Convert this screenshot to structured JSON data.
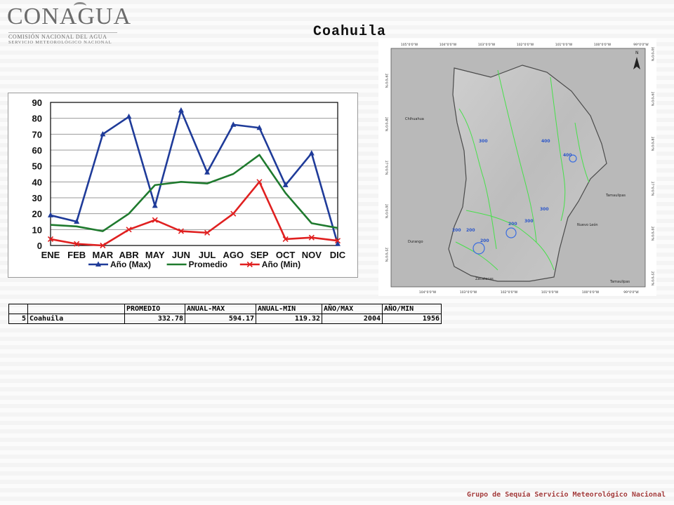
{
  "logo": {
    "title": "CONAGUA",
    "line1": "COMISIÓN NACIONAL DEL AGUA",
    "line2": "SERVICIO METEOROLÓGICO NACIONAL"
  },
  "page_title": "Coahuila",
  "chart_data": {
    "type": "line",
    "categories": [
      "ENE",
      "FEB",
      "MAR",
      "ABR",
      "MAY",
      "JUN",
      "JUL",
      "AGO",
      "SEP",
      "OCT",
      "NOV",
      "DIC"
    ],
    "series": [
      {
        "name": "Año (Max)",
        "color": "#1f3b99",
        "marker": "triangle",
        "values": [
          19,
          15,
          70,
          81,
          25,
          85,
          46,
          76,
          74,
          38,
          58,
          1
        ]
      },
      {
        "name": "Promedio",
        "color": "#1f7a2e",
        "marker": "none",
        "values": [
          13,
          12,
          9,
          20,
          38,
          40,
          39,
          45,
          57,
          33,
          14,
          11
        ]
      },
      {
        "name": "Año (Min)",
        "color": "#e02020",
        "marker": "x",
        "values": [
          4,
          1,
          0,
          10,
          16,
          9,
          8,
          20,
          40,
          4,
          5,
          3
        ]
      }
    ],
    "yticks": [
      0,
      10,
      20,
      30,
      40,
      50,
      60,
      70,
      80,
      90
    ],
    "ylim": [
      0,
      90
    ],
    "grid": true,
    "legend_position": "bottom"
  },
  "map": {
    "top_ticks": [
      "105°0'0\"W",
      "104°0'0\"W",
      "103°0'0\"W",
      "102°0'0\"W",
      "101°0'0\"W",
      "100°0'0\"W",
      "99°0'0\"W"
    ],
    "bottom_ticks": [
      "104°0'0\"W",
      "103°0'0\"W",
      "102°0'0\"W",
      "101°0'0\"W",
      "100°0'0\"W",
      "99°0'0\"W"
    ],
    "left_ticks": [
      "29°0'0\"N",
      "28°0'0\"N",
      "27°0'0\"N",
      "26°0'0\"N",
      "25°0'0\"N"
    ],
    "right_ticks": [
      "30°0'0\"N",
      "29°0'0\"N",
      "28°0'0\"N",
      "27°0'0\"N",
      "26°0'0\"N",
      "25°0'0\"N"
    ],
    "states": [
      "Chihuahua",
      "Durango",
      "Zacatecas",
      "Nuevo León",
      "Tamaulipas",
      "Tamaulipas"
    ],
    "contour_labels": [
      "300",
      "400",
      "400",
      "200",
      "200",
      "200",
      "300",
      "200",
      "300"
    ],
    "north_label": "N"
  },
  "table": {
    "headers": [
      "",
      "",
      "PROMEDIO",
      "ANUAL-MAX",
      "ANUAL-MIN",
      "AÑO/MAX",
      "AÑO/MIN"
    ],
    "rows": [
      [
        "5",
        "Coahuila",
        "332.78",
        "594.17",
        "119.32",
        "2004",
        "1956"
      ]
    ]
  },
  "footer": "Grupo de Sequía Servicio Meteorológico Nacional"
}
